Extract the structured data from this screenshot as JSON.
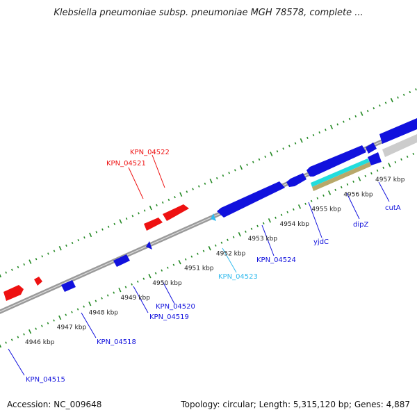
{
  "title": "Klebsiella pneumoniae subsp. pneumoniae MGH 78578, complete ...",
  "footer": {
    "accession": "Accession: NC_009648",
    "summary": "Topology: circular; Length: 5,315,120 bp; Genes: 4,887"
  },
  "colors": {
    "forward_gene": "#ee1111",
    "reverse_gene": "#1111dd",
    "highlight_gene": "#33bbee",
    "backbone": "#888888",
    "tick": "#228822",
    "cyan_feature": "#22dddd",
    "tan_feature": "#b8a86a",
    "gray_feature": "#cccccc"
  },
  "axis": {
    "unit": "kbp",
    "ticks": [
      {
        "kbp": 4946,
        "label": "4946 kbp"
      },
      {
        "kbp": 4947,
        "label": "4947 kbp"
      },
      {
        "kbp": 4948,
        "label": "4948 kbp"
      },
      {
        "kbp": 4949,
        "label": "4949 kbp"
      },
      {
        "kbp": 4950,
        "label": "4950 kbp"
      },
      {
        "kbp": 4951,
        "label": "4951 kbp"
      },
      {
        "kbp": 4952,
        "label": "4952 kbp"
      },
      {
        "kbp": 4953,
        "label": "4953 kbp"
      },
      {
        "kbp": 4954,
        "label": "4954 kbp"
      },
      {
        "kbp": 4955,
        "label": "4955 kbp"
      },
      {
        "kbp": 4956,
        "label": "4956 kbp"
      },
      {
        "kbp": 4957,
        "label": "4957 kbp"
      }
    ]
  },
  "gene_labels": [
    {
      "id": "KPN_04522",
      "label": "KPN_04522",
      "strand": "forward",
      "color": "#ee1111"
    },
    {
      "id": "KPN_04521",
      "label": "KPN_04521",
      "strand": "forward",
      "color": "#ee1111"
    },
    {
      "id": "KPN_04515",
      "label": "KPN_04515",
      "strand": "reverse",
      "color": "#1111dd"
    },
    {
      "id": "KPN_04518",
      "label": "KPN_04518",
      "strand": "reverse",
      "color": "#1111dd"
    },
    {
      "id": "KPN_04519",
      "label": "KPN_04519",
      "strand": "reverse",
      "color": "#1111dd"
    },
    {
      "id": "KPN_04520",
      "label": "KPN_04520",
      "strand": "reverse",
      "color": "#1111dd"
    },
    {
      "id": "KPN_04523",
      "label": "KPN_04523",
      "strand": "reverse",
      "color": "#33bbee"
    },
    {
      "id": "KPN_04524",
      "label": "KPN_04524",
      "strand": "reverse",
      "color": "#1111dd"
    },
    {
      "id": "yjdC",
      "label": "yjdC",
      "strand": "reverse",
      "color": "#1111dd"
    },
    {
      "id": "dipZ",
      "label": "dipZ",
      "strand": "reverse",
      "color": "#1111dd"
    },
    {
      "id": "cutA",
      "label": "cutA",
      "strand": "reverse",
      "color": "#1111dd"
    }
  ]
}
